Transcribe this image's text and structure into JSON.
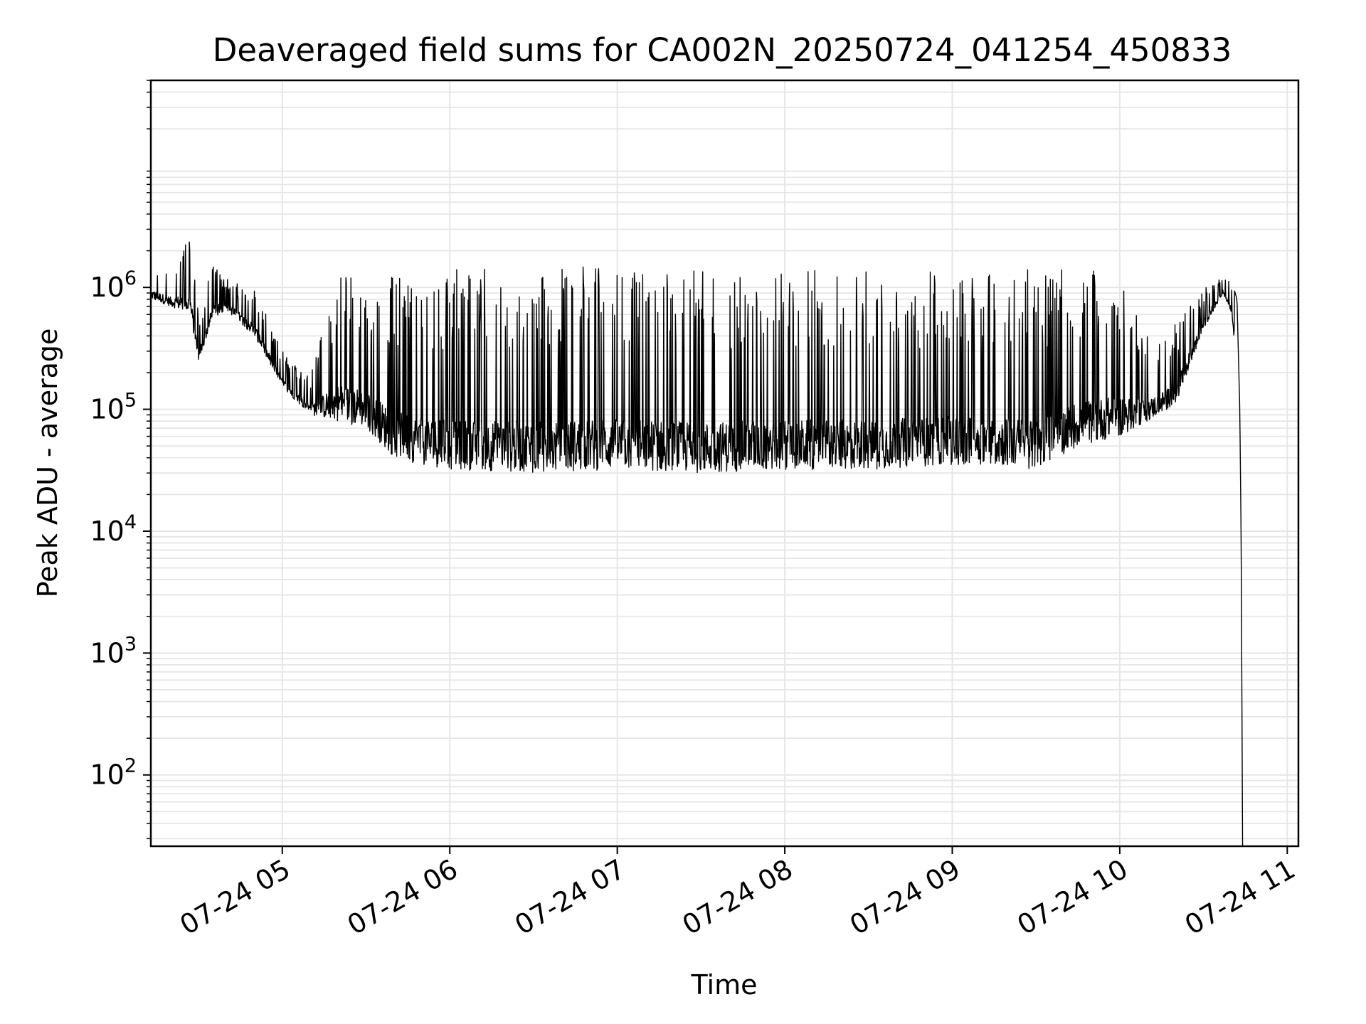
{
  "chart_data": {
    "type": "line",
    "title": "Deaveraged field sums for CA002N_20250724_041254_450833",
    "xlabel": "Time",
    "ylabel": "Peak ADU - average",
    "yscale": "log",
    "ylim": [
      26,
      50000000
    ],
    "xlim": [
      "07-24 04:12:54",
      "07-24 11:04"
    ],
    "x_ticks": [
      "07-24 05",
      "07-24 06",
      "07-24 07",
      "07-24 08",
      "07-24 09",
      "07-24 10",
      "07-24 11"
    ],
    "y_ticks": [
      {
        "base": "10",
        "exp": "2"
      },
      {
        "base": "10",
        "exp": "3"
      },
      {
        "base": "10",
        "exp": "4"
      },
      {
        "base": "10",
        "exp": "5"
      },
      {
        "base": "10",
        "exp": "6"
      }
    ],
    "grid": true,
    "line_color": "#000000",
    "grid_color": "#e6e6e6",
    "series": [
      {
        "x": [
          "07-24 04:13",
          "07-24 04:20",
          "07-24 04:27",
          "07-24 04:30",
          "07-24 04:35",
          "07-24 04:40",
          "07-24 04:50",
          "07-24 05:00",
          "07-24 05:10",
          "07-24 05:20",
          "07-24 05:30",
          "07-24 05:40",
          "07-24 05:50",
          "07-24 06:00",
          "07-24 06:30",
          "07-24 07:00",
          "07-24 07:30",
          "07-24 08:00",
          "07-24 08:30",
          "07-24 09:00",
          "07-24 09:15",
          "07-24 09:30",
          "07-24 09:45",
          "07-24 10:00",
          "07-24 10:10",
          "07-24 10:20",
          "07-24 10:30",
          "07-24 10:37",
          "07-24 10:40",
          "07-24 10:42",
          "07-24 10:43",
          "07-24 10:43:30",
          "07-24 10:44"
        ],
        "y_low": [
          800000,
          700000,
          600000,
          240000,
          550000,
          650000,
          400000,
          150000,
          90000,
          80000,
          70000,
          40000,
          35000,
          32000,
          30000,
          32000,
          30000,
          32000,
          32000,
          35000,
          35000,
          32000,
          50000,
          60000,
          80000,
          110000,
          450000,
          900000,
          600000,
          200000,
          10000,
          1000,
          26
        ],
        "y_high": [
          1700000,
          1400000,
          2800000,
          600000,
          1500000,
          1200000,
          1000000,
          300000,
          200000,
          1300000,
          1300000,
          1300000,
          1300000,
          1400000,
          1500000,
          1500000,
          1400000,
          1400000,
          1400000,
          1400000,
          1400000,
          1400000,
          1400000,
          1300000,
          400000,
          500000,
          1000000,
          1200000,
          1150000,
          800000,
          100000,
          8000,
          26
        ]
      }
    ]
  }
}
